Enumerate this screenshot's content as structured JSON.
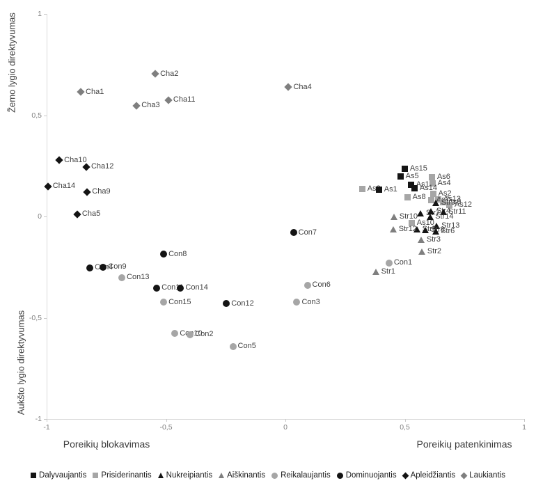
{
  "chart_data": {
    "type": "scatter",
    "grid": false,
    "legend_position": "bottom",
    "axes": {
      "x_range": [
        -1,
        1
      ],
      "y_range": [
        -1,
        1
      ],
      "x_ticks": [
        {
          "label": "-1",
          "value": -1
        },
        {
          "label": "-0,5",
          "value": -0.5
        },
        {
          "label": "0",
          "value": 0
        },
        {
          "label": "0,5",
          "value": 0.5
        },
        {
          "label": "1",
          "value": 1
        }
      ],
      "y_ticks": [
        {
          "label": "1",
          "value": 1
        },
        {
          "label": "0,5",
          "value": 0.5
        },
        {
          "label": "0",
          "value": 0
        },
        {
          "label": "-0,5",
          "value": -0.5
        },
        {
          "label": "-1",
          "value": -1
        }
      ],
      "x_label_left": "Poreikių blokavimas",
      "x_label_right": "Poreikių patenkinimas",
      "y_label_top": "Žemo lygio direktyvumas",
      "y_label_bottom": "Aukšto lygio direktyvumas"
    },
    "colors": {
      "black_marker": "#141414",
      "gray_square_circle": "#a6a6a6",
      "gray_triangle_diamond": "#7f7f7f",
      "axis_line": "#d9d9d9",
      "tick_text": "#808080",
      "point_label_text": "#404040"
    },
    "legend": [
      {
        "label": "Dalyvaujantis",
        "shape": "square",
        "color": "#141414"
      },
      {
        "label": "Prisiderinantis",
        "shape": "square",
        "color": "#a6a6a6"
      },
      {
        "label": "Nukreipiantis",
        "shape": "triangle",
        "color": "#141414"
      },
      {
        "label": "Aiškinantis",
        "shape": "triangle",
        "color": "#7f7f7f"
      },
      {
        "label": "Reikalaujantis",
        "shape": "circle",
        "color": "#a6a6a6"
      },
      {
        "label": "Dominuojantis",
        "shape": "circle",
        "color": "#141414"
      },
      {
        "label": "Apleidžiantis",
        "shape": "diamond",
        "color": "#141414"
      },
      {
        "label": "Laukiantis",
        "shape": "diamond",
        "color": "#7f7f7f"
      }
    ],
    "points": [
      {
        "id": "Cha1",
        "group": "Laukiantis",
        "x": -0.857,
        "y": 0.615
      },
      {
        "id": "Cha2",
        "group": "Laukiantis",
        "x": -0.545,
        "y": 0.703
      },
      {
        "id": "Cha3",
        "group": "Laukiantis",
        "x": -0.623,
        "y": 0.547
      },
      {
        "id": "Cha11",
        "group": "Laukiantis",
        "x": -0.49,
        "y": 0.574
      },
      {
        "id": "Cha4",
        "group": "Laukiantis",
        "x": 0.013,
        "y": 0.639
      },
      {
        "id": "Cha10",
        "group": "Apleidžiantis",
        "x": -0.947,
        "y": 0.278
      },
      {
        "id": "Cha12",
        "group": "Apleidžiantis",
        "x": -0.834,
        "y": 0.244
      },
      {
        "id": "Cha14",
        "group": "Apleidžiantis",
        "x": -0.995,
        "y": 0.148
      },
      {
        "id": "Cha9",
        "group": "Apleidžiantis",
        "x": -0.83,
        "y": 0.121
      },
      {
        "id": "Cha5",
        "group": "Apleidžiantis",
        "x": -0.872,
        "y": 0.012
      },
      {
        "id": "As3",
        "group": "Prisiderinantis",
        "x": 0.323,
        "y": 0.135
      },
      {
        "id": "As1",
        "group": "Dalyvaujantis",
        "x": 0.393,
        "y": 0.131
      },
      {
        "id": "As15",
        "group": "Dalyvaujantis",
        "x": 0.501,
        "y": 0.237
      },
      {
        "id": "As5",
        "group": "Dalyvaujantis",
        "x": 0.483,
        "y": 0.199
      },
      {
        "id": "As6",
        "group": "Prisiderinantis",
        "x": 0.615,
        "y": 0.193
      },
      {
        "id": "As11",
        "group": "Dalyvaujantis",
        "x": 0.527,
        "y": 0.158
      },
      {
        "id": "As4",
        "group": "Prisiderinantis",
        "x": 0.617,
        "y": 0.162
      },
      {
        "id": "As14",
        "group": "Dalyvaujantis",
        "x": 0.542,
        "y": 0.138
      },
      {
        "id": "As8",
        "group": "Prisiderinantis",
        "x": 0.512,
        "y": 0.094
      },
      {
        "id": "As2",
        "group": "Prisiderinantis",
        "x": 0.62,
        "y": 0.111
      },
      {
        "id": "As13",
        "group": "Prisiderinantis",
        "x": 0.641,
        "y": 0.083
      },
      {
        "id": "As7",
        "group": "Prisiderinantis",
        "x": 0.612,
        "y": 0.08
      },
      {
        "id": "As9",
        "group": "Prisiderinantis",
        "x": 0.66,
        "y": 0.072
      },
      {
        "id": "As12",
        "group": "Prisiderinantis",
        "x": 0.688,
        "y": 0.058
      },
      {
        "id": "As10",
        "group": "Prisiderinantis",
        "x": 0.53,
        "y": -0.032
      },
      {
        "id": "Str9",
        "group": "Nukreipiantis",
        "x": 0.632,
        "y": 0.066
      },
      {
        "id": "Str7",
        "group": "Nukreipiantis",
        "x": 0.568,
        "y": 0.017
      },
      {
        "id": "Str4",
        "group": "Nukreipiantis",
        "x": 0.612,
        "y": 0.027
      },
      {
        "id": "Str11",
        "group": "Nukreipiantis",
        "x": 0.662,
        "y": 0.022
      },
      {
        "id": "Str14",
        "group": "Nukreipiantis",
        "x": 0.607,
        "y": -0.003
      },
      {
        "id": "Str10",
        "group": "Aiškinantis",
        "x": 0.457,
        "y": -0.002
      },
      {
        "id": "Str13",
        "group": "Nukreipiantis",
        "x": 0.633,
        "y": -0.046
      },
      {
        "id": "Str5",
        "group": "Nukreipiantis",
        "x": 0.553,
        "y": -0.065
      },
      {
        "id": "Str8",
        "group": "Nukreipiantis",
        "x": 0.588,
        "y": -0.068
      },
      {
        "id": "Str6",
        "group": "Nukreipiantis",
        "x": 0.63,
        "y": -0.075
      },
      {
        "id": "Str12",
        "group": "Aiškinantis",
        "x": 0.454,
        "y": -0.063
      },
      {
        "id": "Str3",
        "group": "Aiškinantis",
        "x": 0.571,
        "y": -0.114
      },
      {
        "id": "Str2",
        "group": "Aiškinantis",
        "x": 0.574,
        "y": -0.172
      },
      {
        "id": "Con1",
        "group": "Reikalaujantis",
        "x": 0.434,
        "y": -0.23
      },
      {
        "id": "Str1",
        "group": "Aiškinantis",
        "x": 0.381,
        "y": -0.274
      },
      {
        "id": "Con7",
        "group": "Dominuojantis",
        "x": 0.034,
        "y": -0.08
      },
      {
        "id": "Con8",
        "group": "Dominuojantis",
        "x": -0.51,
        "y": -0.186
      },
      {
        "id": "Con4",
        "group": "Dominuojantis",
        "x": -0.819,
        "y": -0.254
      },
      {
        "id": "Con9",
        "group": "Dominuojantis",
        "x": -0.763,
        "y": -0.25
      },
      {
        "id": "Con13",
        "group": "Reikalaujantis",
        "x": -0.685,
        "y": -0.302
      },
      {
        "id": "Con11",
        "group": "Dominuojantis",
        "x": -0.539,
        "y": -0.353
      },
      {
        "id": "Con14",
        "group": "Dominuojantis",
        "x": -0.439,
        "y": -0.353
      },
      {
        "id": "Con15",
        "group": "Reikalaujantis",
        "x": -0.51,
        "y": -0.424
      },
      {
        "id": "Con12",
        "group": "Dominuojantis",
        "x": -0.247,
        "y": -0.431
      },
      {
        "id": "Con6",
        "group": "Reikalaujantis",
        "x": 0.092,
        "y": -0.339
      },
      {
        "id": "Con3",
        "group": "Reikalaujantis",
        "x": 0.048,
        "y": -0.424
      },
      {
        "id": "Con10",
        "group": "Reikalaujantis",
        "x": -0.463,
        "y": -0.578
      },
      {
        "id": "Con2",
        "group": "Reikalaujantis",
        "x": -0.399,
        "y": -0.584
      },
      {
        "id": "Con5",
        "group": "Reikalaujantis",
        "x": -0.22,
        "y": -0.642
      }
    ]
  }
}
